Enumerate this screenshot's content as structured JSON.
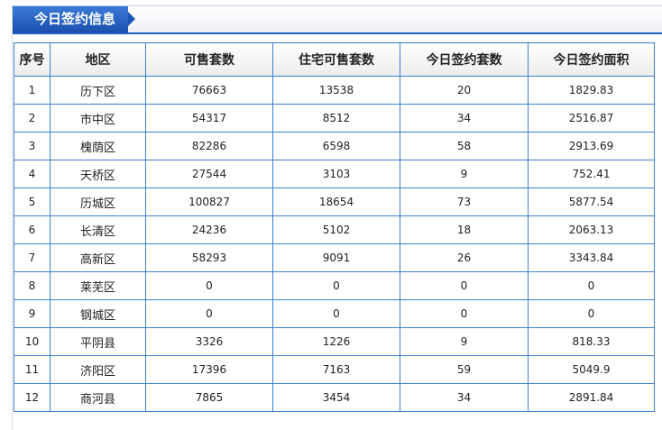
{
  "title": "今日签约信息",
  "columns": [
    "序号",
    "地区",
    "可售套数",
    "住宅可售套数",
    "今日签约套数",
    "今日签约面积"
  ],
  "rows": [
    [
      "1",
      "历下区",
      "76663",
      "13538",
      "20",
      "1829.83"
    ],
    [
      "2",
      "市中区",
      "54317",
      "8512",
      "34",
      "2516.87"
    ],
    [
      "3",
      "槐荫区",
      "82286",
      "6598",
      "58",
      "2913.69"
    ],
    [
      "4",
      "天桥区",
      "27544",
      "3103",
      "9",
      "752.41"
    ],
    [
      "5",
      "历城区",
      "100827",
      "18654",
      "73",
      "5877.54"
    ],
    [
      "6",
      "长清区",
      "24236",
      "5102",
      "18",
      "2063.13"
    ],
    [
      "7",
      "高新区",
      "58293",
      "9091",
      "26",
      "3343.84"
    ],
    [
      "8",
      "莱芜区",
      "0",
      "0",
      "0",
      "0"
    ],
    [
      "9",
      "钢城区",
      "0",
      "0",
      "0",
      "0"
    ],
    [
      "10",
      "平阴县",
      "3326",
      "1226",
      "9",
      "818.33"
    ],
    [
      "11",
      "济阳区",
      "17396",
      "7163",
      "59",
      "5049.9"
    ],
    [
      "12",
      "商河县",
      "7865",
      "3454",
      "34",
      "2891.84"
    ]
  ]
}
